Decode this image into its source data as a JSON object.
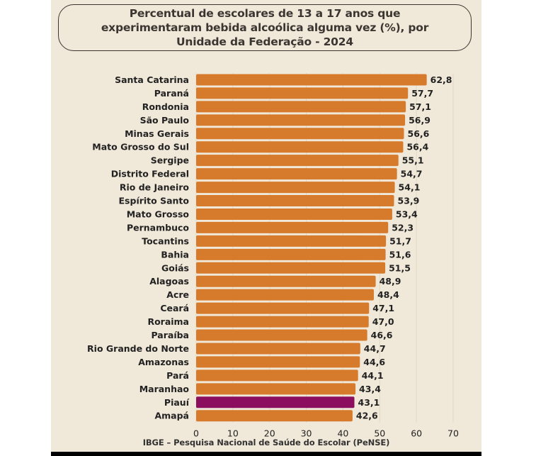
{
  "colors": {
    "background": "#f0e8d8",
    "bar": "#d67a2c",
    "highlight": "#8b0f5e",
    "text": "#222222",
    "grid": "#e2d8c4"
  },
  "footer": "IBGE – Pesquisa Nacional de Saúde do Escolar (PeNSE)",
  "chart_data": {
    "type": "bar",
    "orientation": "horizontal",
    "title": "Percentual de escolares de 13 a 17 anos que\nexperimentaram bebida alcoólica alguma vez (%), por\nUnidade da Federação - 2024",
    "xlabel": "",
    "ylabel": "",
    "xlim": [
      0,
      70
    ],
    "xticks": [
      0,
      10,
      20,
      30,
      40,
      50,
      60,
      70
    ],
    "grid": true,
    "legend": "none",
    "highlighted": "Piauí",
    "categories": [
      "Santa Catarina",
      "Paraná",
      "Rondonia",
      "São Paulo",
      "Minas Gerais",
      "Mato Grosso do Sul",
      "Sergipe",
      "Distrito Federal",
      "Rio de Janeiro",
      "Espírito Santo",
      "Mato Grosso",
      "Pernambuco",
      "Tocantins",
      "Bahia",
      "Goiás",
      "Alagoas",
      "Acre",
      "Ceará",
      "Roraima",
      "Paraíba",
      "Rio Grande do Norte",
      "Amazonas",
      "Pará",
      "Maranhao",
      "Piauí",
      "Amapá"
    ],
    "values": [
      62.8,
      57.7,
      57.1,
      56.9,
      56.6,
      56.4,
      55.1,
      54.7,
      54.1,
      53.9,
      53.4,
      52.3,
      51.7,
      51.6,
      51.5,
      48.9,
      48.4,
      47.1,
      47.0,
      46.6,
      44.7,
      44.6,
      44.1,
      43.4,
      43.1,
      42.6
    ],
    "value_labels": [
      "62,8",
      "57,7",
      "57,1",
      "56,9",
      "56,6",
      "56,4",
      "55,1",
      "54,7",
      "54,1",
      "53,9",
      "53,4",
      "52,3",
      "51,7",
      "51,6",
      "51,5",
      "48,9",
      "48,4",
      "47,1",
      "47,0",
      "46,6",
      "44,7",
      "44,6",
      "44,1",
      "43,4",
      "43,1",
      "42,6"
    ]
  }
}
